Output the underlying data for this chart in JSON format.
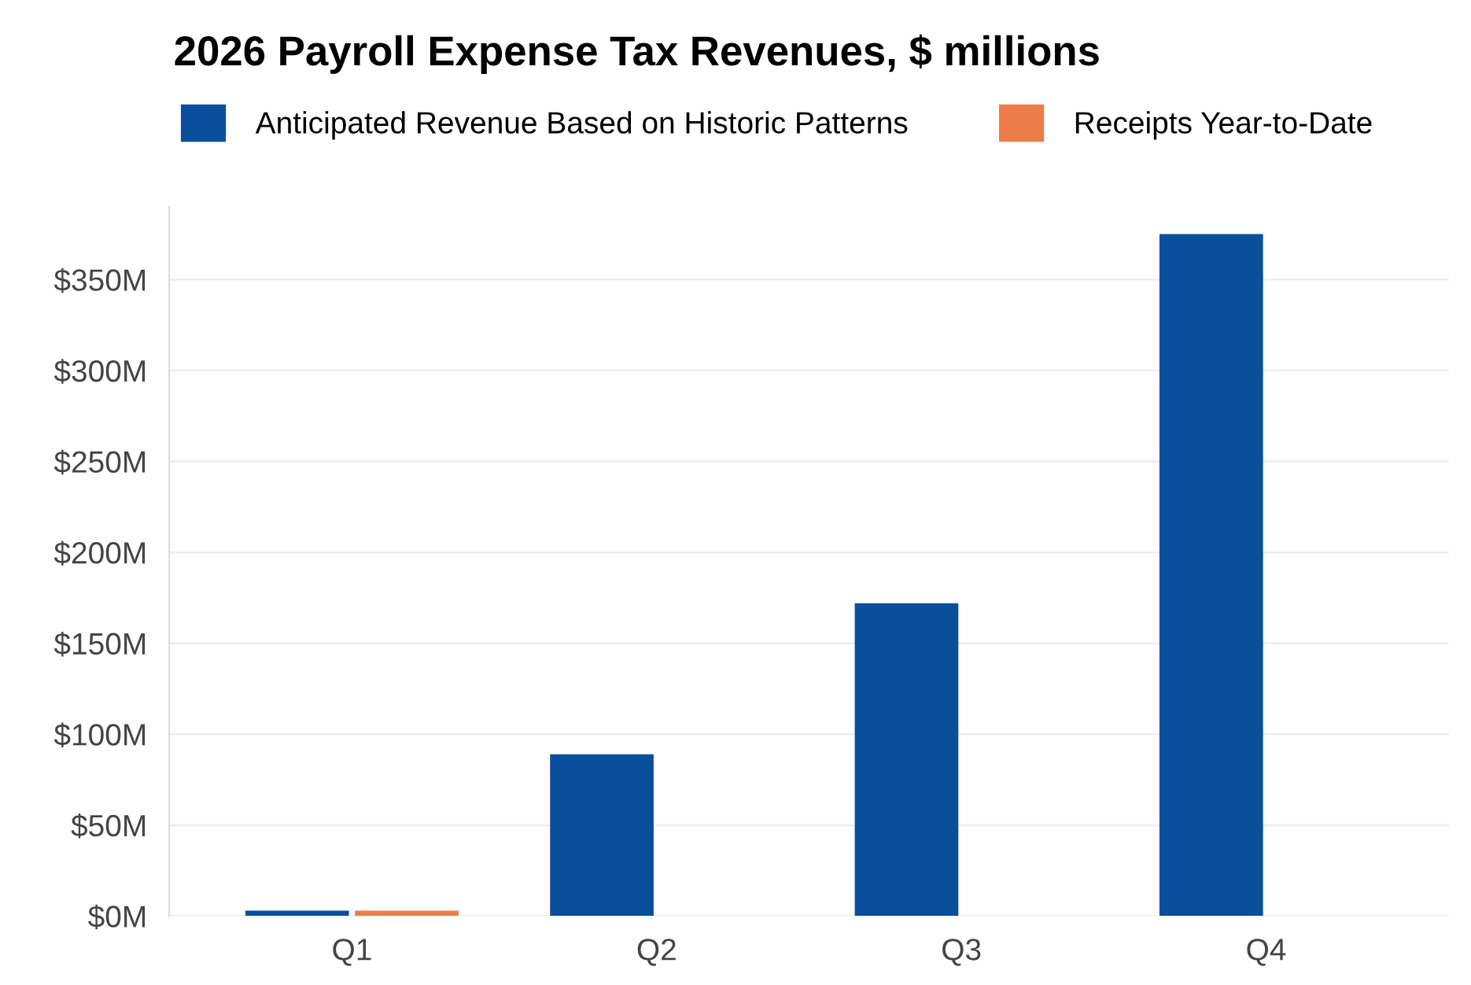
{
  "chart_data": {
    "type": "bar",
    "title": "2026 Payroll Expense Tax Revenues, $ millions",
    "categories": [
      "Q1",
      "Q2",
      "Q3",
      "Q4"
    ],
    "series": [
      {
        "name": "Anticipated Revenue Based on Historic Patterns",
        "color": "#0a4f9c",
        "values": [
          3,
          89,
          172,
          375
        ]
      },
      {
        "name": "Receipts Year-to-Date",
        "color": "#ec7d48",
        "values": [
          3,
          null,
          null,
          null
        ]
      }
    ],
    "ylim": [
      0,
      390
    ],
    "yticks": [
      {
        "value": 0,
        "label": "$0M"
      },
      {
        "value": 50,
        "label": "$50M"
      },
      {
        "value": 100,
        "label": "$100M"
      },
      {
        "value": 150,
        "label": "$150M"
      },
      {
        "value": 200,
        "label": "$200M"
      },
      {
        "value": 250,
        "label": "$250M"
      },
      {
        "value": 300,
        "label": "$300M"
      },
      {
        "value": 350,
        "label": "$350M"
      }
    ],
    "grid": "y",
    "legend": "top"
  }
}
